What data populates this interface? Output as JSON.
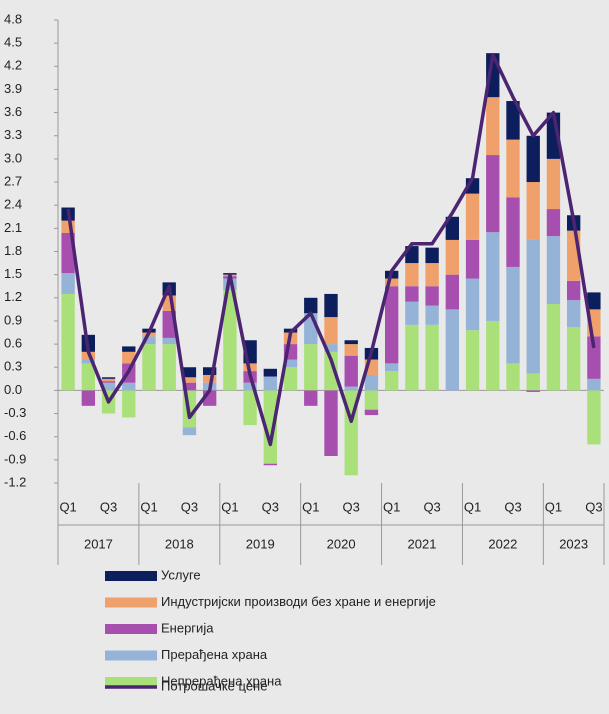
{
  "chart_data": {
    "type": "bar",
    "categories": [
      "Q1",
      null,
      "Q3",
      null,
      "Q1",
      null,
      "Q3",
      null,
      "Q1",
      null,
      "Q3",
      null,
      "Q1",
      null,
      "Q3",
      null,
      "Q1",
      null,
      "Q3",
      null,
      "Q1",
      null,
      "Q3",
      null,
      "Q1",
      null,
      "Q3"
    ],
    "year_labels": [
      "2017",
      "2018",
      "2019",
      "2020",
      "2021",
      "2022",
      "2023"
    ],
    "ylim": [
      -1.2,
      4.8
    ],
    "yticks": [
      4.8,
      4.5,
      4.2,
      3.9,
      3.6,
      3.3,
      {
        "value": 3,
        "label": "3.0"
      },
      2.7,
      2.4,
      2.1,
      1.8,
      1.5,
      1.2,
      0.9,
      0.6,
      0.3,
      {
        "value": 0,
        "label": "0.0"
      },
      -0.3,
      -0.6,
      -0.9,
      -1.2
    ],
    "grid": false,
    "series": [
      {
        "name": "Непрерађена храна",
        "color": "#a9e07a",
        "values": [
          1.25,
          0.35,
          -0.3,
          -0.35,
          0.6,
          0.6,
          -0.48,
          0.0,
          1.3,
          -0.45,
          -0.95,
          0.3,
          0.6,
          0.5,
          -1.1,
          -0.25,
          0.25,
          0.85,
          0.85,
          0.0,
          0.78,
          0.9,
          0.35,
          0.22,
          1.12,
          0.82,
          -0.7
        ]
      },
      {
        "name": "Прерађена храна",
        "color": "#95b3d7",
        "values": [
          0.27,
          0.05,
          0.1,
          0.1,
          0.1,
          0.08,
          -0.1,
          0.1,
          0.15,
          0.1,
          0.18,
          0.1,
          0.4,
          0.1,
          0.05,
          0.2,
          0.1,
          0.3,
          0.25,
          1.05,
          0.67,
          1.15,
          1.25,
          1.73,
          0.88,
          0.35,
          0.15
        ]
      },
      {
        "name": "Енергија",
        "color": "#a64fae",
        "values": [
          0.52,
          -0.2,
          0.02,
          0.25,
          0.0,
          0.35,
          0.1,
          -0.2,
          0.03,
          0.15,
          -0.02,
          0.2,
          -0.2,
          -0.85,
          0.4,
          -0.07,
          1.0,
          0.2,
          0.25,
          0.45,
          0.5,
          1.0,
          0.9,
          -0.02,
          0.35,
          0.25,
          0.55
        ]
      },
      {
        "name": "Индустријски производи без хране и енергије",
        "color": "#f0a06a",
        "values": [
          0.16,
          0.1,
          0.03,
          0.15,
          0.05,
          0.2,
          0.07,
          0.1,
          0.02,
          0.1,
          0.0,
          0.15,
          0.0,
          0.35,
          0.15,
          0.2,
          0.1,
          0.3,
          0.3,
          0.45,
          0.6,
          0.75,
          0.75,
          0.75,
          0.65,
          0.65,
          0.35
        ]
      },
      {
        "name": "Услуге",
        "color": "#0c1f5c",
        "values": [
          0.17,
          0.22,
          0.02,
          0.07,
          0.05,
          0.17,
          0.13,
          0.1,
          0.02,
          0.3,
          0.1,
          0.05,
          0.2,
          0.3,
          0.05,
          0.15,
          0.1,
          0.22,
          0.2,
          0.3,
          0.2,
          0.57,
          0.5,
          0.6,
          0.6,
          0.2,
          0.22
        ]
      }
    ],
    "line": {
      "name": "Потрошачке цене",
      "color": "#4b2472",
      "values": [
        2.35,
        0.5,
        -0.15,
        0.25,
        0.75,
        1.35,
        -0.35,
        0.0,
        1.5,
        0.2,
        -0.7,
        0.75,
        1.0,
        0.4,
        -0.4,
        0.5,
        1.55,
        1.9,
        1.9,
        2.3,
        2.75,
        4.35,
        3.8,
        3.3,
        3.6,
        2.2,
        0.55
      ]
    }
  }
}
